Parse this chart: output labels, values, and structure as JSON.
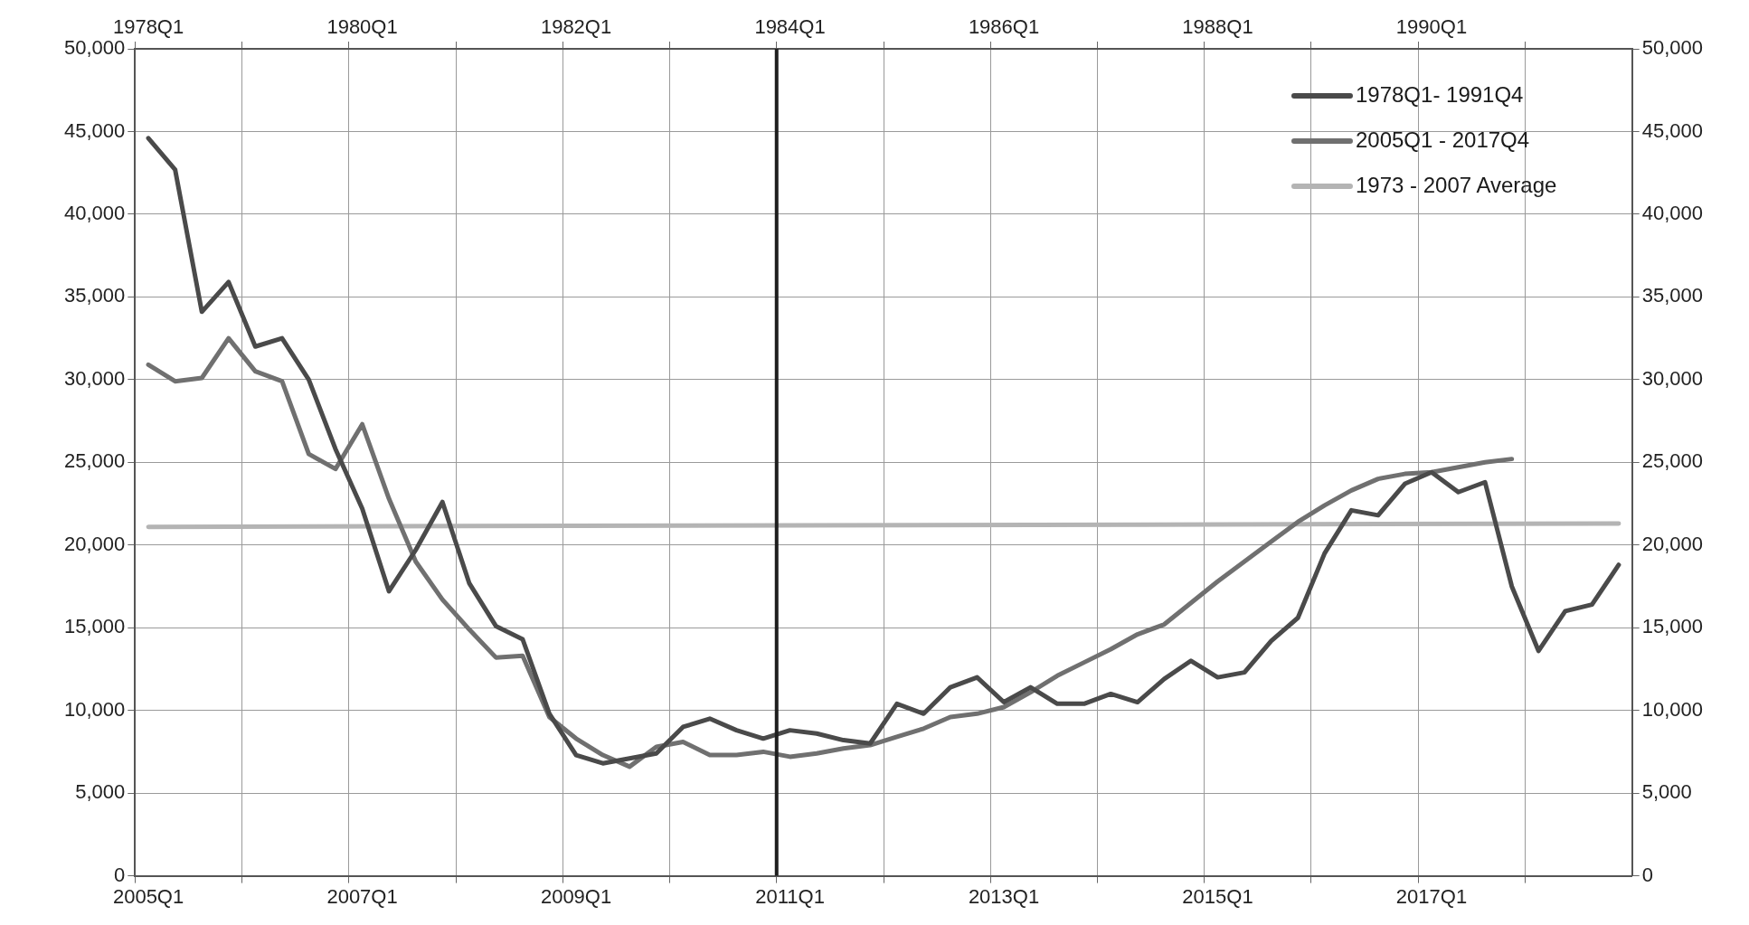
{
  "chart_data": {
    "type": "line",
    "categories": [
      "2005Q1",
      null,
      null,
      null,
      null,
      null,
      null,
      null,
      "2007Q1",
      null,
      null,
      null,
      null,
      null,
      null,
      null,
      "2009Q1",
      null,
      null,
      null,
      null,
      null,
      null,
      null,
      "2011Q1",
      null,
      null,
      null,
      null,
      null,
      null,
      null,
      "2013Q1",
      null,
      null,
      null,
      null,
      null,
      null,
      null,
      "2015Q1",
      null,
      null,
      null,
      null,
      null,
      null,
      null,
      "2017Q1",
      null,
      null,
      null,
      null,
      null,
      null,
      null
    ],
    "annotations": [
      "1978Q1",
      "1980Q1",
      "1982Q1",
      "1984Q1",
      "1986Q1",
      "1988Q1",
      "1990Q1"
    ],
    "series": [
      {
        "name": "1978Q1- 1991Q4",
        "color": "#4a4a4a",
        "values": [
          44600,
          42700,
          34100,
          35900,
          32000,
          32500,
          30000,
          25800,
          22200,
          17200,
          19700,
          22600,
          17700,
          15100,
          14300,
          9800,
          7300,
          6800,
          7100,
          7400,
          9000,
          9500,
          8800,
          8300,
          8800,
          8600,
          8200,
          8000,
          10400,
          9800,
          11400,
          12000,
          10500,
          11400,
          10400,
          10400,
          11000,
          10500,
          11900,
          13000,
          12000,
          12300,
          14200,
          15600,
          19500,
          22100,
          21800,
          23700,
          24400,
          23200,
          23800,
          17500,
          13600,
          16000,
          16400,
          18800
        ]
      },
      {
        "name": "2005Q1 - 2017Q4",
        "color": "#707070",
        "values": [
          30900,
          29900,
          30100,
          32500,
          30500,
          29900,
          25500,
          24600,
          27300,
          22800,
          19000,
          16700,
          14900,
          13200,
          13300,
          9600,
          8300,
          7300,
          6600,
          7800,
          8100,
          7300,
          7300,
          7500,
          7200,
          7400,
          7700,
          7900,
          8400,
          8900,
          9600,
          9800,
          10200,
          11100,
          12100,
          12900,
          13700,
          14600,
          15200,
          16500,
          17800,
          19000,
          20200,
          21400,
          22400,
          23300,
          24000,
          24300,
          24400,
          24700,
          25000,
          25200,
          null,
          null,
          null,
          null
        ]
      },
      {
        "name": "1973 - 2007 Average",
        "color": "#b4b4b4",
        "values": [
          21100,
          null,
          null,
          null,
          null,
          null,
          null,
          null,
          null,
          null,
          null,
          null,
          null,
          null,
          null,
          null,
          null,
          null,
          null,
          null,
          null,
          null,
          null,
          null,
          null,
          null,
          null,
          null,
          null,
          null,
          null,
          null,
          null,
          null,
          null,
          null,
          null,
          null,
          null,
          null,
          null,
          null,
          null,
          null,
          null,
          null,
          null,
          null,
          null,
          null,
          null,
          null,
          null,
          null,
          null,
          21300
        ]
      }
    ],
    "ylim": [
      0,
      50000
    ],
    "yticks": [
      0,
      {
        "value": 5000,
        "label": "5,000"
      },
      {
        "value": 10000,
        "label": "10,000"
      },
      {
        "value": 15000,
        "label": "15,000"
      },
      {
        "value": 20000,
        "label": "20,000"
      },
      {
        "value": 25000,
        "label": "25,000"
      },
      {
        "value": 30000,
        "label": "30,000"
      },
      {
        "value": 35000,
        "label": "35,000"
      },
      {
        "value": 40000,
        "label": "40,000"
      },
      {
        "value": 45000,
        "label": "45,000"
      },
      {
        "value": 50000,
        "label": "50,000"
      }
    ],
    "y2lim": [
      0,
      50000
    ],
    "y2ticks": [
      0,
      {
        "value": 5000,
        "label": "5,000"
      },
      {
        "value": 10000,
        "label": "10,000"
      },
      {
        "value": 15000,
        "label": "15,000"
      },
      {
        "value": 20000,
        "label": "20,000"
      },
      {
        "value": 25000,
        "label": "25,000"
      },
      {
        "value": 30000,
        "label": "30,000"
      },
      {
        "value": 35000,
        "label": "35,000"
      },
      {
        "value": 40000,
        "label": "40,000"
      },
      {
        "value": 45000,
        "label": "45,000"
      },
      {
        "value": 50000,
        "label": "50,000"
      }
    ],
    "ref_lines": [
      {
        "axis": "x",
        "value": "2011Q1",
        "color": "#1e1e1e"
      }
    ],
    "grid": true,
    "legend": "top right",
    "marker": "none",
    "line_style": "solid"
  }
}
